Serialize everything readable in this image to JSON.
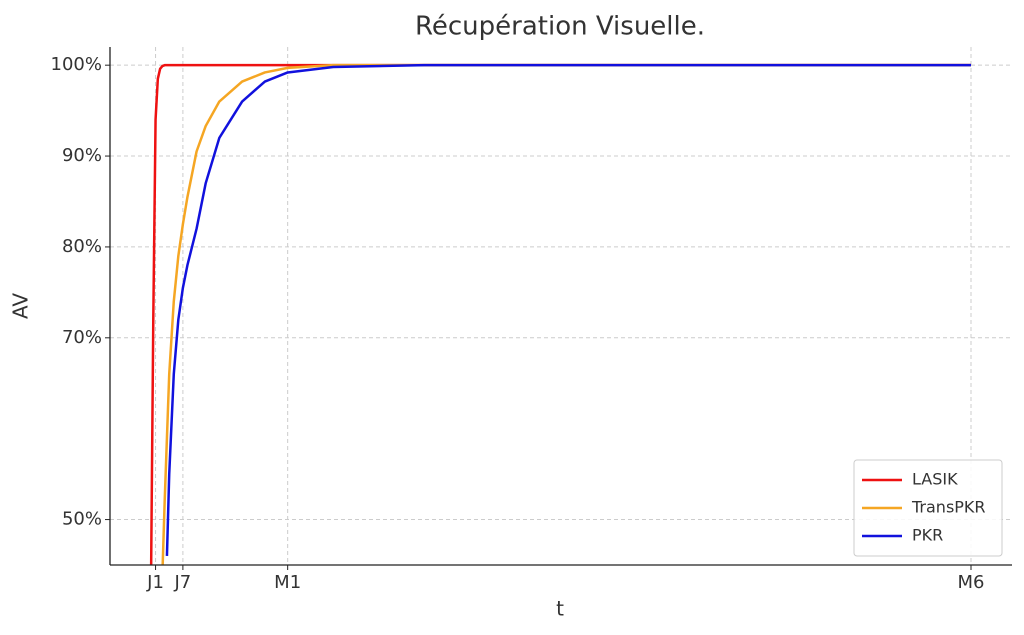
{
  "chart_data": {
    "type": "line",
    "title": "Récupération Visuelle.",
    "x_label": "t",
    "y_label": "AV",
    "x": [
      0,
      0.5,
      1,
      1.5,
      2,
      2.5,
      3,
      3.5,
      4,
      5,
      6,
      7,
      8,
      10,
      12,
      15,
      20,
      25,
      30,
      40,
      60,
      180
    ],
    "series": [
      {
        "name": "LASIK",
        "color": "#ee1111",
        "values": [
          43,
          72,
          94,
          98.5,
          99.6,
          99.9,
          100,
          100,
          100,
          100,
          100,
          100,
          100,
          100,
          100,
          100,
          100,
          100,
          100,
          100,
          100,
          100
        ]
      },
      {
        "name": "TransPKR",
        "color": "#f5a623",
        "values": [
          null,
          null,
          null,
          null,
          null,
          44,
          52,
          59,
          66,
          74,
          79,
          82.5,
          85.5,
          90.5,
          93.3,
          96,
          98.2,
          99.2,
          99.7,
          100,
          100,
          100
        ]
      },
      {
        "name": "PKR",
        "color": "#1111dd",
        "values": [
          null,
          null,
          null,
          null,
          null,
          null,
          null,
          46,
          55,
          66,
          72,
          75.5,
          78,
          82,
          87,
          92,
          96,
          98.2,
          99.2,
          99.8,
          100,
          100
        ]
      }
    ],
    "xlim": [
      -9,
      189
    ],
    "xticks": [
      {
        "value": 1,
        "label": "J1"
      },
      {
        "value": 7,
        "label": "J7"
      },
      {
        "value": 30,
        "label": "M1"
      },
      {
        "value": 180,
        "label": "M6"
      }
    ],
    "ylim": [
      45,
      102
    ],
    "yticks": [
      {
        "value": 50,
        "label": "50%"
      },
      {
        "value": 70,
        "label": "70%"
      },
      {
        "value": 80,
        "label": "80%"
      },
      {
        "value": 90,
        "label": "90%"
      },
      {
        "value": 100,
        "label": "100%"
      }
    ],
    "grid": true,
    "legend": "lower right"
  }
}
